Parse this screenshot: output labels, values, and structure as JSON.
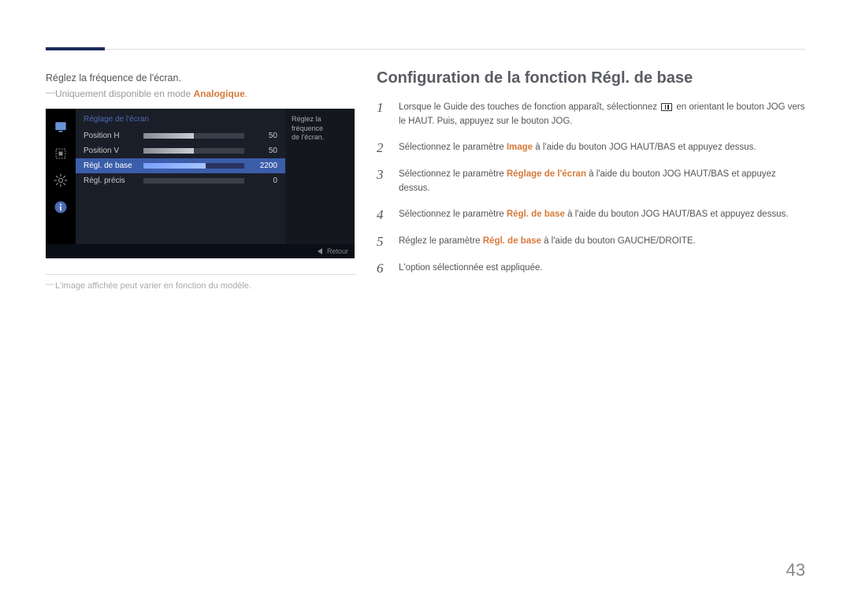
{
  "left": {
    "intro": "Réglez la fréquence de l'écran.",
    "note_prefix": "Uniquement disponible en mode ",
    "note_highlight": "Analogique",
    "note_suffix": ".",
    "footnote": "L'image affichée peut varier en fonction du modèle."
  },
  "osd": {
    "title": "Réglage de l'écran",
    "desc_line1": "Réglez la fréquence",
    "desc_line2": "de l'écran.",
    "rows": [
      {
        "label": "Position H",
        "value": "50",
        "fill_pct": 50,
        "selected": false
      },
      {
        "label": "Position V",
        "value": "50",
        "fill_pct": 50,
        "selected": false
      },
      {
        "label": "Régl. de base",
        "value": "2200",
        "fill_pct": 62,
        "selected": true
      },
      {
        "label": "Régl. précis",
        "value": "0",
        "fill_pct": 0,
        "selected": false
      }
    ],
    "retour": "Retour",
    "colors": {
      "panel_bg": "#1a1e28",
      "selected_bg": "#3b5daa",
      "title_color": "#4d6ab4",
      "black": "#000000"
    }
  },
  "section": {
    "title": "Configuration de la fonction Régl. de base",
    "steps": [
      {
        "n": "1",
        "pre": "Lorsque le Guide des touches de fonction apparaît, sélectionnez ",
        "icon": true,
        "post": " en orientant le bouton JOG vers le HAUT. Puis, appuyez sur le bouton JOG."
      },
      {
        "n": "2",
        "pre": "Sélectionnez le paramètre ",
        "hl": "Image",
        "post": " à l'aide du bouton JOG HAUT/BAS et appuyez dessus."
      },
      {
        "n": "3",
        "pre": "Sélectionnez le paramètre ",
        "hl": "Réglage de l'écran",
        "post": " à l'aide du bouton JOG HAUT/BAS et appuyez dessus."
      },
      {
        "n": "4",
        "pre": "Sélectionnez le paramètre ",
        "hl": "Régl. de base",
        "post": " à l'aide du bouton JOG HAUT/BAS et appuyez dessus."
      },
      {
        "n": "5",
        "pre": "Réglez le paramètre ",
        "hl": "Régl. de base",
        "post": " à l'aide du bouton GAUCHE/DROITE."
      },
      {
        "n": "6",
        "pre": "L'option sélectionnée est appliquée."
      }
    ]
  },
  "page_number": "43"
}
